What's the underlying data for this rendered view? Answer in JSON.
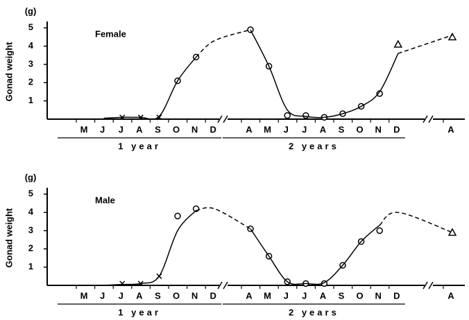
{
  "chart_data": [
    {
      "type": "line",
      "label": "Female",
      "y_unit": "(g)",
      "ylabel": "Gonad weight",
      "categories": [
        "M",
        "J",
        "J",
        "A",
        "S",
        "O",
        "N",
        "D",
        "A",
        "M",
        "J",
        "J",
        "A",
        "S",
        "O",
        "N",
        "D",
        "A"
      ],
      "groups": [
        "1 year",
        "2 years"
      ],
      "ylim": [
        0,
        5.2
      ],
      "yticks": [
        1,
        2,
        3,
        4,
        5
      ],
      "color": "#000000",
      "series": [
        {
          "marker": "cross",
          "values": [
            null,
            null,
            0.1,
            0.1,
            0.1,
            null,
            null,
            null,
            null,
            null,
            null,
            null,
            null,
            null,
            null,
            null,
            null,
            null
          ]
        },
        {
          "marker": "circle",
          "values": [
            null,
            null,
            null,
            null,
            null,
            2.1,
            3.4,
            null,
            4.9,
            2.9,
            0.2,
            0.2,
            0.1,
            0.3,
            0.7,
            1.4,
            null,
            null
          ]
        },
        {
          "marker": "triangle",
          "values": [
            null,
            null,
            null,
            null,
            null,
            null,
            null,
            null,
            null,
            null,
            null,
            null,
            null,
            null,
            null,
            null,
            4.1,
            4.5
          ]
        },
        {
          "line": "solid",
          "values": [
            null,
            0.05,
            0.1,
            0.1,
            0.15,
            2.1,
            3.4,
            null,
            4.9,
            2.9,
            0.5,
            0.15,
            0.1,
            0.3,
            0.7,
            1.5,
            3.6,
            null
          ]
        },
        {
          "line": "dashed",
          "values": [
            null,
            null,
            null,
            null,
            null,
            null,
            3.4,
            4.3,
            4.9,
            null,
            null,
            null,
            null,
            null,
            null,
            null,
            3.6,
            4.6
          ]
        }
      ]
    },
    {
      "type": "line",
      "label": "Male",
      "y_unit": "(g)",
      "ylabel": "Gonad weight",
      "categories": [
        "M",
        "J",
        "J",
        "A",
        "S",
        "O",
        "N",
        "D",
        "A",
        "M",
        "J",
        "J",
        "A",
        "S",
        "O",
        "N",
        "D",
        "A"
      ],
      "groups": [
        "1 year",
        "2 years"
      ],
      "ylim": [
        0,
        5.2
      ],
      "yticks": [
        1,
        2,
        3,
        4,
        5
      ],
      "color": "#000000",
      "series": [
        {
          "marker": "cross",
          "values": [
            null,
            null,
            0.1,
            0.1,
            0.5,
            null,
            null,
            null,
            null,
            null,
            null,
            null,
            null,
            null,
            null,
            null,
            null,
            null
          ]
        },
        {
          "marker": "circle",
          "values": [
            null,
            null,
            null,
            null,
            null,
            3.8,
            4.2,
            null,
            3.1,
            1.6,
            0.2,
            0.1,
            0.1,
            1.1,
            2.4,
            3.0,
            null,
            null
          ]
        },
        {
          "marker": "triangle",
          "values": [
            null,
            null,
            null,
            null,
            null,
            null,
            null,
            null,
            null,
            null,
            null,
            null,
            null,
            null,
            null,
            null,
            null,
            2.9
          ]
        },
        {
          "line": "solid",
          "values": [
            null,
            0,
            0.05,
            0.1,
            0.5,
            3.0,
            4.1,
            null,
            3.1,
            1.6,
            0.2,
            0.1,
            0.15,
            1.1,
            2.4,
            3.3,
            null,
            null
          ]
        },
        {
          "line": "dashed",
          "values": [
            null,
            null,
            null,
            null,
            null,
            null,
            4.1,
            4.2,
            3.1,
            null,
            null,
            null,
            null,
            null,
            null,
            3.3,
            4.0,
            2.9
          ]
        }
      ]
    }
  ]
}
